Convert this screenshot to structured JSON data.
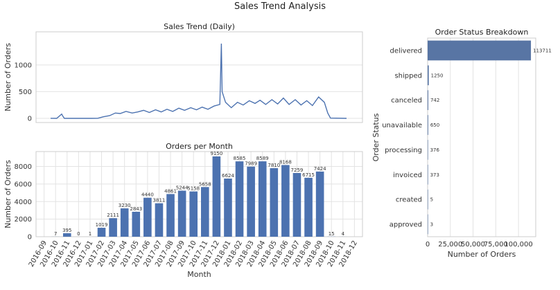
{
  "suptitle": "Sales Trend Analysis",
  "colors": {
    "bar": "#4c72b0",
    "line": "#4c72b0",
    "status_bar": "#5875a4"
  },
  "chart_data": [
    {
      "type": "line",
      "title": "Sales Trend (Daily)",
      "xlabel": "",
      "ylabel": "Number of Orders",
      "ylim": [
        -78,
        1620
      ],
      "yticks": [
        0,
        500,
        1000
      ],
      "grid": true,
      "x": [
        "2016-09-04",
        "2016-09-20",
        "2016-10-03",
        "2016-10-06",
        "2016-10-10",
        "2016-12-20",
        "2017-01-05",
        "2017-01-20",
        "2017-02-05",
        "2017-02-20",
        "2017-03-05",
        "2017-03-20",
        "2017-04-05",
        "2017-04-20",
        "2017-05-05",
        "2017-05-20",
        "2017-06-05",
        "2017-06-20",
        "2017-07-05",
        "2017-07-20",
        "2017-08-05",
        "2017-08-20",
        "2017-09-05",
        "2017-09-20",
        "2017-10-05",
        "2017-10-20",
        "2017-11-05",
        "2017-11-20",
        "2017-11-24",
        "2017-11-26",
        "2017-12-05",
        "2017-12-20",
        "2018-01-05",
        "2018-01-20",
        "2018-02-05",
        "2018-02-20",
        "2018-03-05",
        "2018-03-20",
        "2018-04-05",
        "2018-04-20",
        "2018-05-05",
        "2018-05-20",
        "2018-06-05",
        "2018-06-20",
        "2018-07-05",
        "2018-07-20",
        "2018-08-05",
        "2018-08-20",
        "2018-08-29",
        "2018-09-05",
        "2018-10-17"
      ],
      "values": [
        1,
        0,
        80,
        40,
        0,
        0,
        1,
        30,
        50,
        100,
        90,
        130,
        100,
        120,
        150,
        110,
        160,
        120,
        170,
        130,
        190,
        150,
        200,
        160,
        210,
        170,
        230,
        260,
        1400,
        500,
        300,
        200,
        300,
        250,
        330,
        280,
        340,
        260,
        350,
        270,
        380,
        260,
        350,
        250,
        330,
        240,
        400,
        300,
        100,
        5,
        0
      ]
    },
    {
      "type": "bar",
      "title": "Orders per Month",
      "xlabel": "Month",
      "ylabel": "Number of Orders",
      "ylim": [
        0,
        9700
      ],
      "yticks": [
        0,
        2000,
        4000,
        6000,
        8000
      ],
      "grid": true,
      "categories": [
        "2016-09",
        "2016-10",
        "2016-11",
        "2016-12",
        "2017-01",
        "2017-02",
        "2017-03",
        "2017-04",
        "2017-05",
        "2017-06",
        "2017-07",
        "2017-08",
        "2017-09",
        "2017-10",
        "2017-11",
        "2017-12",
        "2018-01",
        "2018-02",
        "2018-03",
        "2018-04",
        "2018-05",
        "2018-06",
        "2018-07",
        "2018-08",
        "2018-09",
        "2018-10",
        "2018-11",
        "2018-12"
      ],
      "values": [
        null,
        7,
        395,
        0,
        1,
        1019,
        2111,
        3230,
        2843,
        4440,
        3811,
        4861,
        5244,
        5158,
        5658,
        9150,
        6624,
        8585,
        7989,
        8589,
        7810,
        8168,
        7259,
        6715,
        7424,
        15,
        4,
        null
      ],
      "data_labels": [
        "",
        "7",
        "395",
        "0",
        "1",
        "1019",
        "2111",
        "3230",
        "2843",
        "4440",
        "3811",
        "4861",
        "5244",
        "5158",
        "5658",
        "9150",
        "6624",
        "8585",
        "7989",
        "8589",
        "7810",
        "8168",
        "7259",
        "6715",
        "7424",
        "15",
        "4",
        ""
      ]
    },
    {
      "type": "bar",
      "orientation": "horizontal",
      "title": "Order Status Breakdown",
      "xlabel": "Number of Orders",
      "ylabel": "Order Status",
      "xlim": [
        0,
        119000
      ],
      "xticks": [
        0,
        25000,
        50000,
        75000,
        100000
      ],
      "xtick_labels": [
        "0",
        "25,000",
        "50,000",
        "75,000",
        "100,000"
      ],
      "grid": true,
      "categories": [
        "delivered",
        "shipped",
        "canceled",
        "unavailable",
        "processing",
        "invoiced",
        "created",
        "approved"
      ],
      "values": [
        113711,
        1250,
        742,
        650,
        376,
        373,
        5,
        3
      ],
      "data_labels": [
        "113711",
        "1250",
        "742",
        "650",
        "376",
        "373",
        "5",
        "3"
      ]
    }
  ]
}
